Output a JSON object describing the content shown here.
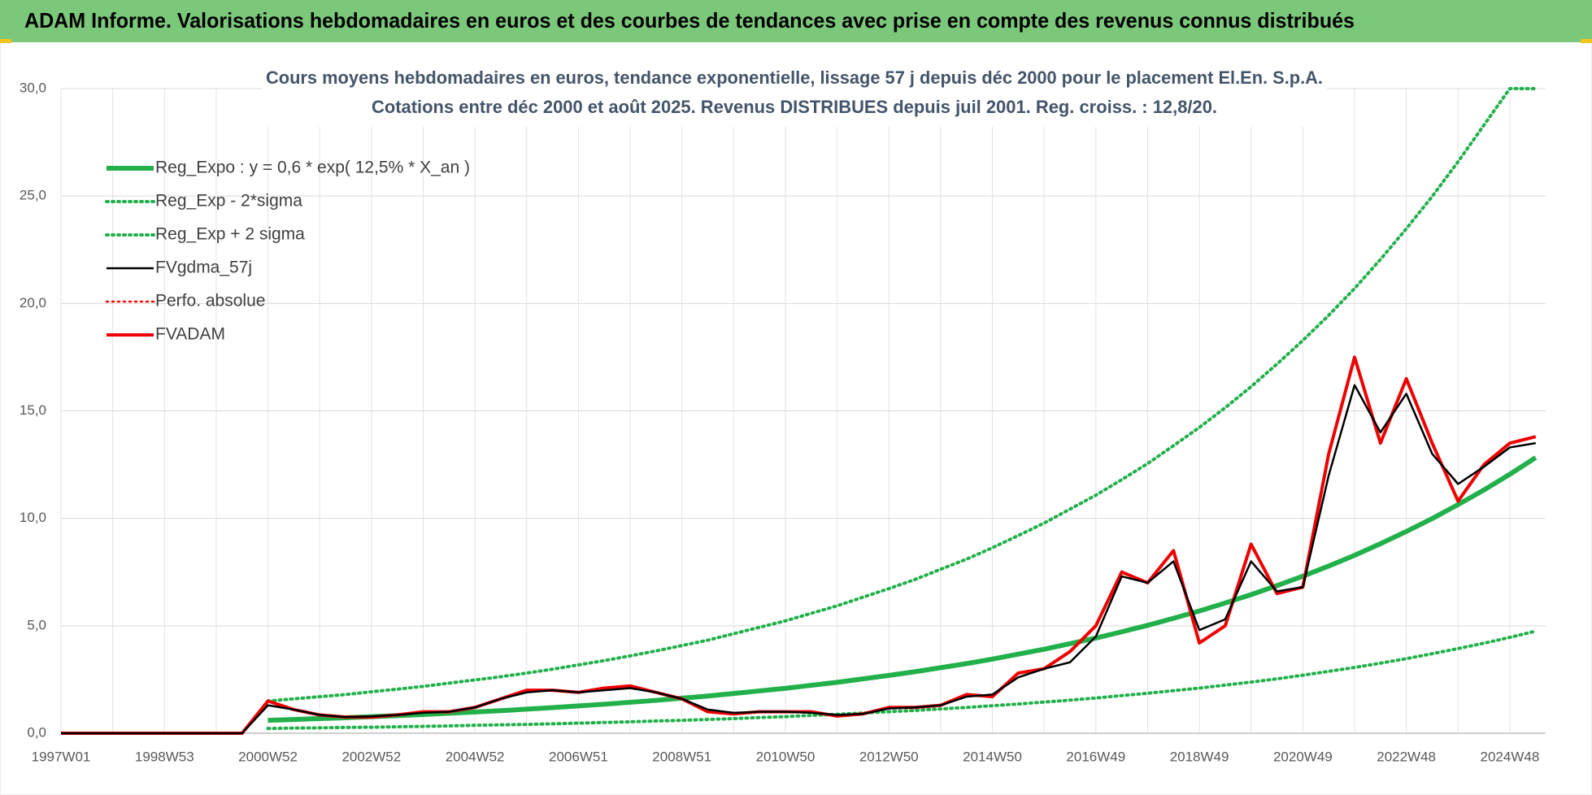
{
  "header": {
    "title": "ADAM Informe. Valorisations hebdomadaires en euros et des courbes de tendances avec prise en compte des revenus connus distribués"
  },
  "chart_data": {
    "type": "line",
    "title": "Cours moyens hebdomadaires en euros, tendance exponentielle, lissage 57 j depuis déc 2000 pour le placement El.En. S.p.A.",
    "subtitle": "Cotations entre déc 2000 et août 2025. Revenus DISTRIBUES depuis juil 2001. Reg. croiss. : 12,8/20.",
    "categories": [
      "1997W01",
      null,
      null,
      null,
      "1998W53",
      null,
      null,
      null,
      "2000W52",
      null,
      null,
      null,
      "2002W52",
      null,
      null,
      null,
      "2004W52",
      null,
      null,
      null,
      "2006W51",
      null,
      null,
      null,
      "2008W51",
      null,
      null,
      null,
      "2010W50",
      null,
      null,
      null,
      "2012W50",
      null,
      null,
      null,
      "2014W50",
      null,
      null,
      null,
      "2016W49",
      null,
      null,
      null,
      "2018W49",
      null,
      null,
      null,
      "2020W49",
      null,
      null,
      null,
      "2022W48",
      null,
      null,
      null,
      "2024W48",
      null
    ],
    "ylim": [
      0,
      30
    ],
    "yticks": [
      {
        "value": 0,
        "label": "0,0"
      },
      {
        "value": 5,
        "label": "5,0"
      },
      {
        "value": 10,
        "label": "10,0"
      },
      {
        "value": 15,
        "label": "15,0"
      },
      {
        "value": 20,
        "label": "20,0"
      },
      {
        "value": 25,
        "label": "25,0"
      },
      {
        "value": 30,
        "label": "30,0"
      }
    ],
    "grid": true,
    "legend": "upper left",
    "series": [
      {
        "name": "Reg_Expo : y = 0,6 * exp( 12,5% *  X_an )",
        "color": "#22b04b",
        "dash": false,
        "width": 6,
        "values": [
          null,
          null,
          null,
          null,
          null,
          null,
          null,
          null,
          0.6,
          0.64,
          0.68,
          0.72,
          0.77,
          0.82,
          0.87,
          0.93,
          0.99,
          1.05,
          1.12,
          1.19,
          1.27,
          1.35,
          1.44,
          1.53,
          1.63,
          1.73,
          1.85,
          1.97,
          2.09,
          2.23,
          2.37,
          2.53,
          2.69,
          2.86,
          3.05,
          3.24,
          3.45,
          3.68,
          3.91,
          4.17,
          4.43,
          4.72,
          5.02,
          5.35,
          5.69,
          6.06,
          6.45,
          6.87,
          7.31,
          7.78,
          8.28,
          8.82,
          9.39,
          9.99,
          10.64,
          11.32,
          12.05,
          12.83
        ]
      },
      {
        "name": "Reg_Exp - 2*sigma",
        "color": "#22b04b",
        "dash": true,
        "width": 4,
        "values": [
          null,
          null,
          null,
          null,
          null,
          null,
          null,
          null,
          0.22,
          0.24,
          0.25,
          0.27,
          0.28,
          0.3,
          0.32,
          0.34,
          0.37,
          0.39,
          0.41,
          0.44,
          0.47,
          0.5,
          0.53,
          0.57,
          0.6,
          0.64,
          0.68,
          0.73,
          0.77,
          0.83,
          0.88,
          0.94,
          1.0,
          1.06,
          1.13,
          1.2,
          1.28,
          1.36,
          1.45,
          1.54,
          1.64,
          1.75,
          1.86,
          1.98,
          2.1,
          2.24,
          2.38,
          2.53,
          2.7,
          2.88,
          3.06,
          3.26,
          3.47,
          3.7,
          3.94,
          4.19,
          4.46,
          4.75
        ]
      },
      {
        "name": "Reg_Exp + 2 sigma",
        "color": "#22b04b",
        "dash": true,
        "width": 4,
        "values": [
          null,
          null,
          null,
          null,
          null,
          null,
          null,
          null,
          1.5,
          1.6,
          1.7,
          1.8,
          1.93,
          2.05,
          2.18,
          2.33,
          2.48,
          2.63,
          2.8,
          2.98,
          3.18,
          3.38,
          3.6,
          3.83,
          4.08,
          4.33,
          4.63,
          4.93,
          5.23,
          5.58,
          5.93,
          6.33,
          6.73,
          7.15,
          7.63,
          8.1,
          8.63,
          9.2,
          9.78,
          10.43,
          11.08,
          11.8,
          12.55,
          13.38,
          14.23,
          15.15,
          16.13,
          17.18,
          18.28,
          19.45,
          20.7,
          22.05,
          23.48,
          24.98,
          26.6,
          28.3,
          30,
          30
        ]
      },
      {
        "name": "FVgdma_57j",
        "color": "#000000",
        "dash": false,
        "width": 2.5,
        "values": [
          0,
          0,
          0,
          0,
          0,
          0,
          0,
          0,
          1.3,
          1.1,
          0.85,
          0.75,
          0.78,
          0.85,
          0.95,
          1.0,
          1.2,
          1.6,
          1.9,
          2.0,
          1.9,
          2.0,
          2.1,
          1.9,
          1.6,
          1.1,
          0.95,
          1.0,
          1.0,
          0.95,
          0.85,
          0.9,
          1.15,
          1.2,
          1.3,
          1.7,
          1.8,
          2.6,
          3.0,
          3.3,
          4.5,
          7.3,
          7.0,
          8.0,
          4.8,
          5.3,
          8.0,
          6.6,
          6.8,
          12.0,
          16.2,
          14.0,
          15.8,
          13.0,
          11.6,
          12.4,
          13.3,
          13.5
        ]
      },
      {
        "name": "Perfo. absolue",
        "color": "#ff0000",
        "dash": true,
        "width": 2.5,
        "values": [
          null,
          null,
          null,
          null,
          null,
          null,
          null,
          null,
          null,
          null,
          null,
          null,
          null,
          null,
          null,
          null,
          null,
          null,
          null,
          null,
          null,
          null,
          null,
          null,
          null,
          null,
          null,
          null,
          null,
          null,
          null,
          null,
          null,
          null,
          null,
          null,
          null,
          null,
          null,
          null,
          null,
          null,
          null,
          null,
          null,
          null,
          null,
          null,
          null,
          null,
          null,
          null,
          null,
          null,
          null,
          null,
          null,
          null
        ]
      },
      {
        "name": "FVADAM",
        "color": "#ee0000",
        "dash": false,
        "width": 4,
        "values": [
          0,
          0,
          0,
          0,
          0,
          0,
          0,
          0,
          1.5,
          1.1,
          0.85,
          0.75,
          0.75,
          0.85,
          1.0,
          1.0,
          1.2,
          1.6,
          2.0,
          2.0,
          1.9,
          2.1,
          2.2,
          1.9,
          1.6,
          1.0,
          0.9,
          1.0,
          1.0,
          1.0,
          0.8,
          0.9,
          1.2,
          1.2,
          1.3,
          1.8,
          1.7,
          2.8,
          3.0,
          3.8,
          5.0,
          7.5,
          7.0,
          8.5,
          4.2,
          5.0,
          8.8,
          6.5,
          6.8,
          13.0,
          17.5,
          13.5,
          16.5,
          13.5,
          10.8,
          12.5,
          13.5,
          13.8
        ]
      }
    ]
  }
}
